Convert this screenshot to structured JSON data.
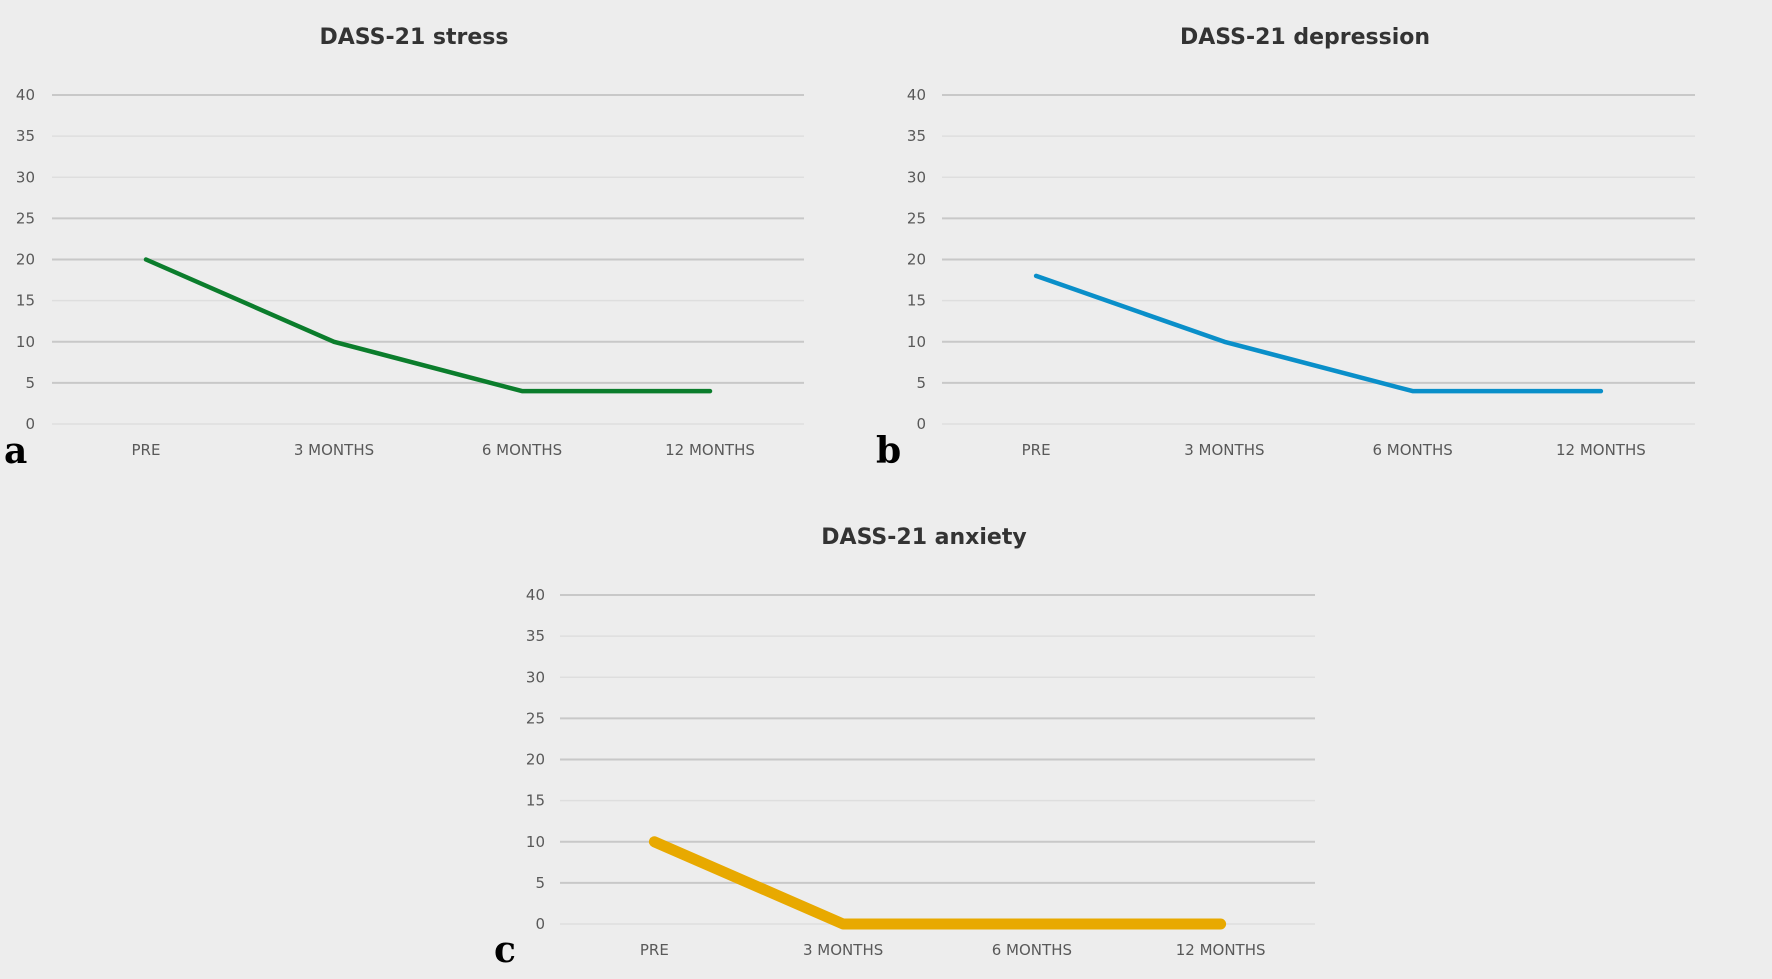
{
  "chart_data": [
    {
      "type": "line",
      "panel": "a",
      "title": "DASS-21 stress",
      "xlabel": "",
      "ylabel": "",
      "categories": [
        "PRE",
        "3 MONTHS",
        "6 MONTHS",
        "12 MONTHS"
      ],
      "series": [
        {
          "name": "DASS-21 stress",
          "values": [
            20,
            10,
            4,
            4
          ],
          "color": "#0b7d2c"
        }
      ],
      "ylim": [
        0,
        40
      ],
      "yticks": [
        "0",
        "5",
        "10",
        "15",
        "20",
        "25",
        "30",
        "35",
        "40"
      ],
      "ytick_values": [
        0,
        5,
        10,
        15,
        20,
        25,
        30,
        35,
        40
      ],
      "grid": true,
      "legend": "none"
    },
    {
      "type": "line",
      "panel": "b",
      "title": "DASS-21 depression",
      "xlabel": "",
      "ylabel": "",
      "categories": [
        "PRE",
        "3 MONTHS",
        "6 MONTHS",
        "12 MONTHS"
      ],
      "series": [
        {
          "name": "DASS-21 depression",
          "values": [
            18,
            10,
            4,
            4
          ],
          "color": "#0a8fc9"
        }
      ],
      "ylim": [
        0,
        40
      ],
      "yticks": [
        "0",
        "5",
        "10",
        "15",
        "20",
        "25",
        "30",
        "35",
        "40"
      ],
      "ytick_values": [
        0,
        5,
        10,
        15,
        20,
        25,
        30,
        35,
        40
      ],
      "grid": true,
      "legend": "none"
    },
    {
      "type": "line",
      "panel": "c",
      "title": "DASS-21 anxiety",
      "xlabel": "",
      "ylabel": "",
      "categories": [
        "PRE",
        "3 MONTHS",
        "6 MONTHS",
        "12 MONTHS"
      ],
      "series": [
        {
          "name": "DASS-21 anxiety",
          "values": [
            10,
            0,
            0,
            0
          ],
          "color": "#e8a900"
        }
      ],
      "ylim": [
        0,
        40
      ],
      "yticks": [
        "0",
        "5",
        "10",
        "15",
        "20",
        "25",
        "30",
        "35",
        "40"
      ],
      "ytick_values": [
        0,
        5,
        10,
        15,
        20,
        25,
        30,
        35,
        40
      ],
      "grid": true,
      "legend": "none"
    }
  ]
}
